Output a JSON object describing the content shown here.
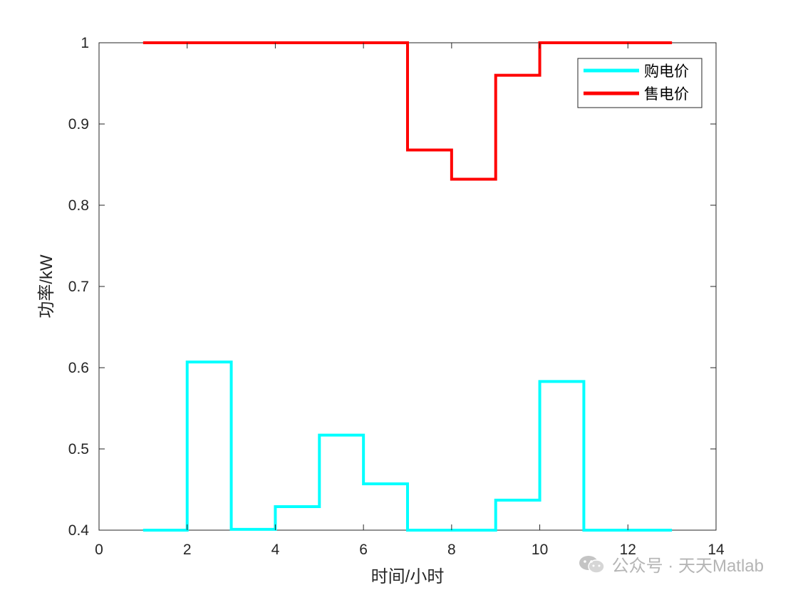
{
  "chart_data": {
    "type": "line",
    "step": true,
    "xlabel": "时间/小时",
    "ylabel": "功率/kW",
    "xlim": [
      0,
      14
    ],
    "ylim": [
      0.4,
      1.0
    ],
    "xticks": [
      "0",
      "2",
      "4",
      "6",
      "8",
      "10",
      "12",
      "14"
    ],
    "yticks": [
      "0.4",
      "0.5",
      "0.6",
      "0.7",
      "0.8",
      "0.9",
      "1"
    ],
    "grid": false,
    "legend_position": "top-right",
    "x": [
      1,
      2,
      3,
      4,
      5,
      6,
      7,
      8,
      9,
      10,
      11,
      12,
      13
    ],
    "series": [
      {
        "name": "购电价",
        "color": "#00ffff",
        "values": [
          0.4,
          0.607,
          0.401,
          0.429,
          0.517,
          0.457,
          0.4,
          0.4,
          0.437,
          0.583,
          0.4,
          0.4,
          0.4
        ]
      },
      {
        "name": "售电价",
        "color": "#ff0000",
        "values": [
          1.0,
          1.0,
          1.0,
          1.0,
          1.0,
          1.0,
          0.868,
          0.832,
          0.96,
          1.0,
          1.0,
          1.0,
          1.0
        ]
      }
    ]
  },
  "watermark": {
    "icon": "wechat-icon",
    "text": "公众号 · 天天Matlab"
  }
}
